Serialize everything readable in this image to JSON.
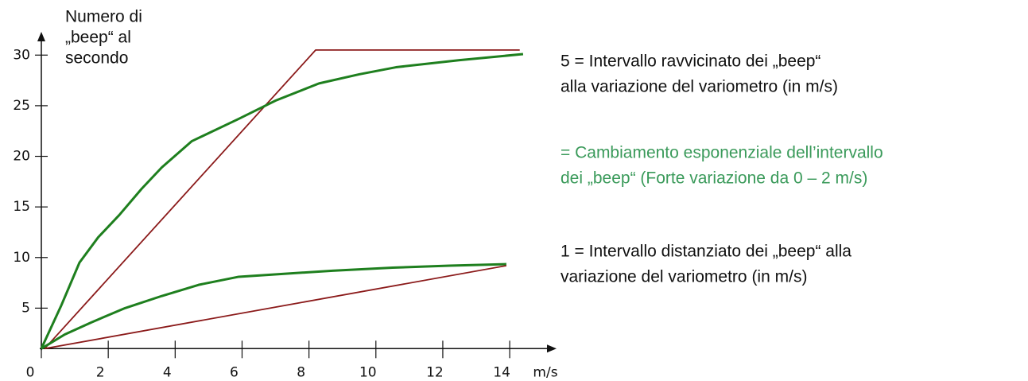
{
  "chart_data": {
    "type": "line",
    "y_label_lines": [
      "Numero di",
      "„beep“ al",
      "secondo"
    ],
    "x_label": "m/s",
    "xlim": [
      0,
      15.4
    ],
    "ylim": [
      1,
      32.3
    ],
    "xticks": [
      0,
      2,
      4,
      6,
      8,
      10,
      12,
      14
    ],
    "yticks": [
      5,
      10,
      15,
      20,
      25,
      30
    ],
    "series": [
      {
        "color": "#8b1a1a",
        "x": [
          0.1,
          8.2,
          14.3
        ],
        "values": [
          1,
          30.5,
          30.5
        ]
      },
      {
        "color": "#1e7f1e",
        "x": [
          0,
          0.6,
          1.14,
          1.7,
          2.33,
          3,
          3.6,
          4.5,
          5.9,
          7,
          8.3,
          9.5,
          10.6,
          12.5,
          14.4
        ],
        "values": [
          1,
          5.3,
          9.5,
          12,
          14.2,
          16.8,
          18.9,
          21.5,
          23.7,
          25.5,
          27.2,
          28.1,
          28.8,
          29.5,
          30.1
        ]
      },
      {
        "color": "#1e7f1e",
        "x": [
          0,
          0.7,
          1.5,
          2.5,
          3.6,
          4.7,
          5.9,
          7.3,
          8.7,
          10.5,
          12.2,
          13.9
        ],
        "values": [
          1,
          2.4,
          3.6,
          5,
          6.2,
          7.3,
          8.1,
          8.4,
          8.7,
          9,
          9.2,
          9.35
        ]
      },
      {
        "color": "#8b1a1a",
        "x": [
          0.1,
          13.9
        ],
        "values": [
          1,
          9.2
        ]
      }
    ],
    "annotations": [
      {
        "lines": [
          "5 = Intervallo ravvicinato dei „beep“",
          "alla variazione del variometro (in m/s)"
        ],
        "color": "#111111"
      },
      {
        "lines": [
          "= Cambiamento esponenziale dell’intervallo",
          "dei „beep“ (Forte variazione da 0 – 2 m/s)"
        ],
        "color": "#3a9a5a"
      },
      {
        "lines": [
          "1 = Intervallo distanziato dei „beep“ alla",
          "variazione del variometro (in m/s)"
        ],
        "color": "#111111"
      }
    ]
  }
}
